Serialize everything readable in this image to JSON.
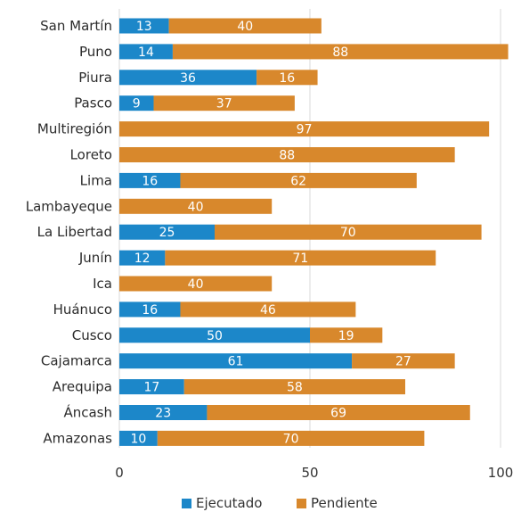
{
  "chart_data": {
    "type": "bar",
    "orientation": "horizontal",
    "stacked": true,
    "categories": [
      "San Martín",
      "Puno",
      "Piura",
      "Pasco",
      "Multiregión",
      "Loreto",
      "Lima",
      "Lambayeque",
      "La Libertad",
      "Junín",
      "Ica",
      "Huánuco",
      "Cusco",
      "Cajamarca",
      "Arequipa",
      "Áncash",
      "Amazonas"
    ],
    "series": [
      {
        "name": "Ejecutado",
        "color": "#1c87c9",
        "values": [
          13,
          14,
          36,
          9,
          0,
          0,
          16,
          0,
          25,
          12,
          0,
          16,
          50,
          61,
          17,
          23,
          10
        ]
      },
      {
        "name": "Pendiente",
        "color": "#d8882c",
        "values": [
          40,
          88,
          16,
          37,
          97,
          88,
          62,
          40,
          70,
          71,
          40,
          46,
          19,
          27,
          58,
          69,
          70
        ]
      }
    ],
    "xlim": [
      0,
      100
    ],
    "xticks": [
      "0",
      "50",
      "100"
    ],
    "grid": true,
    "legend_position": "bottom"
  }
}
